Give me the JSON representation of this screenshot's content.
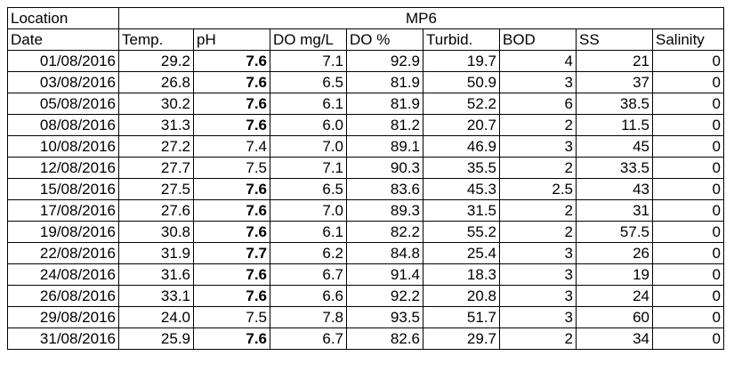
{
  "header": {
    "location_label": "Location",
    "location_value": "MP6",
    "columns": [
      "Date",
      "Temp.",
      "pH",
      "DO mg/L",
      "DO %",
      "Turbid.",
      "BOD",
      "SS",
      "Salinity"
    ]
  },
  "rows": [
    [
      "01/08/2016",
      "29.2",
      "7.6",
      "7.1",
      "92.9",
      "19.7",
      "4",
      "21",
      "0"
    ],
    [
      "03/08/2016",
      "26.8",
      "7.6",
      "6.5",
      "81.9",
      "50.9",
      "3",
      "37",
      "0"
    ],
    [
      "05/08/2016",
      "30.2",
      "7.6",
      "6.1",
      "81.9",
      "52.2",
      "6",
      "38.5",
      "0"
    ],
    [
      "08/08/2016",
      "31.3",
      "7.6",
      "6.0",
      "81.2",
      "20.7",
      "2",
      "11.5",
      "0"
    ],
    [
      "10/08/2016",
      "27.2",
      "7.4",
      "7.0",
      "89.1",
      "46.9",
      "3",
      "45",
      "0"
    ],
    [
      "12/08/2016",
      "27.7",
      "7.5",
      "7.1",
      "90.3",
      "35.5",
      "2",
      "33.5",
      "0"
    ],
    [
      "15/08/2016",
      "27.5",
      "7.6",
      "6.5",
      "83.6",
      "45.3",
      "2.5",
      "43",
      "0"
    ],
    [
      "17/08/2016",
      "27.6",
      "7.6",
      "7.0",
      "89.3",
      "31.5",
      "2",
      "31",
      "0"
    ],
    [
      "19/08/2016",
      "30.8",
      "7.6",
      "6.1",
      "82.2",
      "55.2",
      "2",
      "57.5",
      "0"
    ],
    [
      "22/08/2016",
      "31.9",
      "7.7",
      "6.2",
      "84.8",
      "25.4",
      "3",
      "26",
      "0"
    ],
    [
      "24/08/2016",
      "31.6",
      "7.6",
      "6.7",
      "91.4",
      "18.3",
      "3",
      "19",
      "0"
    ],
    [
      "26/08/2016",
      "33.1",
      "7.6",
      "6.6",
      "92.2",
      "20.8",
      "3",
      "24",
      "0"
    ],
    [
      "29/08/2016",
      "24.0",
      "7.5",
      "7.8",
      "93.5",
      "51.7",
      "3",
      "60",
      "0"
    ],
    [
      "31/08/2016",
      "25.9",
      "7.6",
      "6.7",
      "82.6",
      "29.7",
      "2",
      "34",
      "0"
    ]
  ],
  "bold_ph_rows": [
    0,
    1,
    2,
    3,
    6,
    7,
    8,
    9,
    10,
    11,
    13
  ]
}
